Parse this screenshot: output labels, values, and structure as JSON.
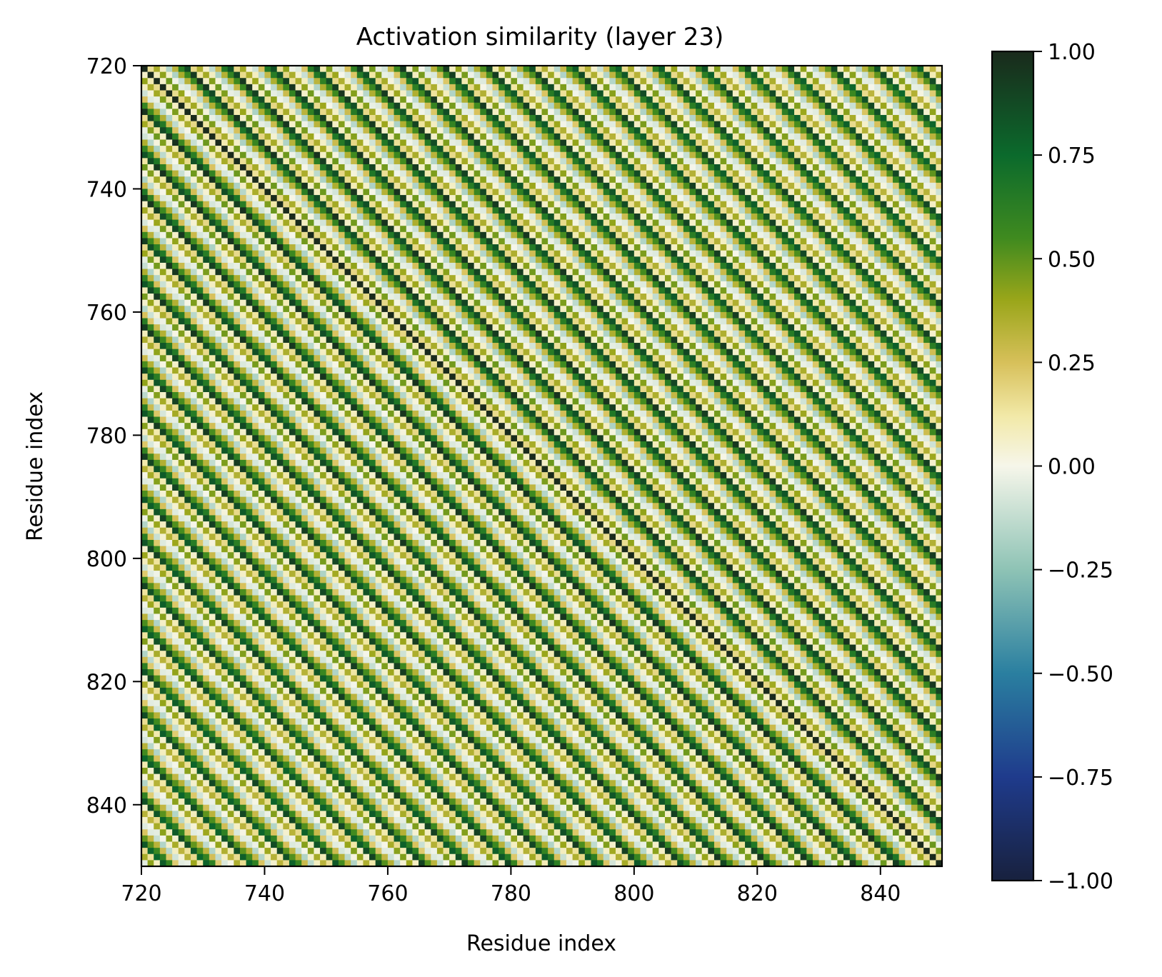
{
  "chart_data": {
    "type": "heatmap",
    "title": "Activation similarity (layer 23)",
    "xlabel": "Residue index",
    "ylabel": "Residue index",
    "xlim": [
      720,
      850
    ],
    "ylim": [
      850,
      720
    ],
    "x_ticks": [
      720,
      740,
      760,
      780,
      800,
      820,
      840
    ],
    "y_ticks": [
      720,
      740,
      760,
      780,
      800,
      820,
      840
    ],
    "x_tick_labels": [
      "720",
      "740",
      "760",
      "780",
      "800",
      "820",
      "840"
    ],
    "y_tick_labels": [
      "720",
      "740",
      "760",
      "780",
      "800",
      "820",
      "840"
    ],
    "matrix": {
      "start": 720,
      "size": 130,
      "diagonal_value": 1.0,
      "pattern": "periodic along residue offset, period 7, with mild long-range decay",
      "values_by_offset_mod_7": [
        0.92,
        0.12,
        0.42,
        0.02,
        -0.12,
        0.3,
        0.62
      ],
      "stripes": "diagonal bands parallel to the main diagonal"
    },
    "colorbar": {
      "vmin": -1.0,
      "vmax": 1.0,
      "ticks": [
        1.0,
        0.75,
        0.5,
        0.25,
        0.0,
        -0.25,
        -0.5,
        -0.75,
        -1.0
      ],
      "tick_labels": [
        "1.00",
        "0.75",
        "0.50",
        "0.25",
        "0.00",
        "−0.25",
        "−0.50",
        "−0.75",
        "−1.00"
      ],
      "colormap_stops": [
        {
          "v": -1.0,
          "color": "#18213e"
        },
        {
          "v": -0.75,
          "color": "#1f3b8c"
        },
        {
          "v": -0.5,
          "color": "#2a7fa0"
        },
        {
          "v": -0.25,
          "color": "#8ec3b5"
        },
        {
          "v": 0.0,
          "color": "#f6f6ea"
        },
        {
          "v": 0.12,
          "color": "#f2e9a8"
        },
        {
          "v": 0.25,
          "color": "#d7c05a"
        },
        {
          "v": 0.4,
          "color": "#9aa61a"
        },
        {
          "v": 0.55,
          "color": "#3f8a1f"
        },
        {
          "v": 0.75,
          "color": "#0b6a2c"
        },
        {
          "v": 1.0,
          "color": "#1a2a1c"
        }
      ]
    }
  }
}
